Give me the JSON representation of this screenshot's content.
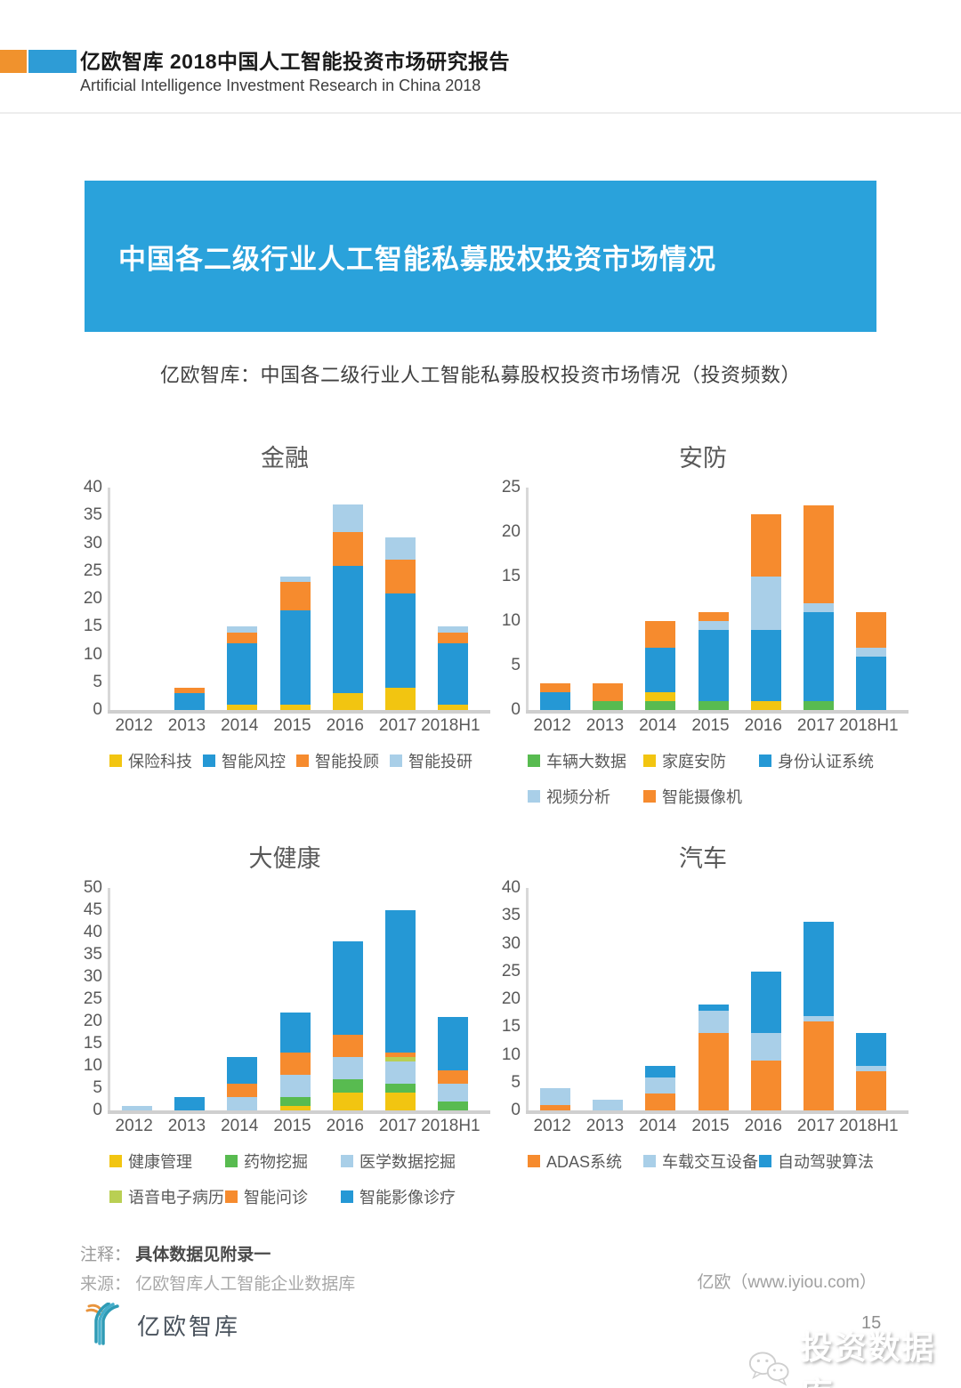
{
  "page": {
    "header": {
      "title": "亿欧智库 2018中国人工智能投资市场研究报告",
      "subtitle": "Artificial Intelligence Investment Research in China 2018"
    },
    "banner": {
      "title": "中国各二级行业人工智能私募股权投资市场情况"
    },
    "section_title": "亿欧智库：中国各二级行业人工智能私募股权投资市场情况（投资频数）",
    "notes": {
      "note_label": "注释：",
      "note_text": "具体数据见附录一",
      "source_label": "来源：",
      "source_text": "亿欧智库人工智能企业数据库"
    },
    "footer_site": "亿欧（www.iyiou.com）",
    "logo_text": "亿欧智库",
    "page_number": "15",
    "watermark_text": "投资数据库"
  },
  "palette": {
    "blue": "#2598D5",
    "orange": "#F68B2E",
    "yellow": "#F2C511",
    "light_blue": "#A9CFE8",
    "green": "#58BB50",
    "light_green": "#B9CF53"
  },
  "chart_data": [
    {
      "type": "bar",
      "stacked": true,
      "title": "金融",
      "categories": [
        "2012",
        "2013",
        "2014",
        "2015",
        "2016",
        "2017",
        "2018H1"
      ],
      "ylim": [
        0,
        40
      ],
      "yticks": [
        0,
        5,
        10,
        15,
        20,
        25,
        30,
        35,
        40
      ],
      "grid": false,
      "legend_position": "bottom",
      "series": [
        {
          "name": "保险科技",
          "color": "#F2C511",
          "values": [
            0,
            0,
            1,
            1,
            3,
            4,
            1
          ]
        },
        {
          "name": "智能风控",
          "color": "#2598D5",
          "values": [
            0,
            3,
            11,
            17,
            23,
            17,
            11
          ]
        },
        {
          "name": "智能投顾",
          "color": "#F68B2E",
          "values": [
            0,
            1,
            2,
            5,
            6,
            6,
            2
          ]
        },
        {
          "name": "智能投研",
          "color": "#A9CFE8",
          "values": [
            0,
            0,
            1,
            1,
            5,
            4,
            1
          ]
        }
      ],
      "legend_rows": [
        [
          "保险科技",
          "智能风控",
          "智能投顾",
          "智能投研"
        ]
      ]
    },
    {
      "type": "bar",
      "stacked": true,
      "title": "安防",
      "categories": [
        "2012",
        "2013",
        "2014",
        "2015",
        "2016",
        "2017",
        "2018H1"
      ],
      "ylim": [
        0,
        25
      ],
      "yticks": [
        0,
        5,
        10,
        15,
        20,
        25
      ],
      "grid": false,
      "legend_position": "bottom",
      "series": [
        {
          "name": "车辆大数据",
          "color": "#58BB50",
          "values": [
            0,
            1,
            1,
            1,
            0,
            1,
            0
          ]
        },
        {
          "name": "家庭安防",
          "color": "#F2C511",
          "values": [
            0,
            0,
            1,
            0,
            1,
            0,
            0
          ]
        },
        {
          "name": "身份认证系统",
          "color": "#2598D5",
          "values": [
            2,
            0,
            5,
            8,
            8,
            10,
            6
          ]
        },
        {
          "name": "视频分析",
          "color": "#A9CFE8",
          "values": [
            0,
            0,
            0,
            1,
            6,
            1,
            1
          ]
        },
        {
          "name": "智能摄像机",
          "color": "#F68B2E",
          "values": [
            1,
            2,
            3,
            1,
            7,
            11,
            4
          ]
        }
      ],
      "legend_rows": [
        [
          "车辆大数据",
          "家庭安防",
          "身份认证系统"
        ],
        [
          "视频分析",
          "智能摄像机"
        ]
      ]
    },
    {
      "type": "bar",
      "stacked": true,
      "title": "大健康",
      "categories": [
        "2012",
        "2013",
        "2014",
        "2015",
        "2016",
        "2017",
        "2018H1"
      ],
      "ylim": [
        0,
        50
      ],
      "yticks": [
        0,
        5,
        10,
        15,
        20,
        25,
        30,
        35,
        40,
        45,
        50
      ],
      "grid": false,
      "legend_position": "bottom",
      "series": [
        {
          "name": "健康管理",
          "color": "#F2C511",
          "values": [
            0,
            0,
            0,
            1,
            4,
            4,
            0
          ]
        },
        {
          "name": "药物挖掘",
          "color": "#58BB50",
          "values": [
            0,
            0,
            0,
            2,
            3,
            2,
            2
          ]
        },
        {
          "name": "医学数据挖掘",
          "color": "#A9CFE8",
          "values": [
            1,
            0,
            3,
            5,
            5,
            5,
            4
          ]
        },
        {
          "name": "语音电子病历",
          "color": "#B9CF53",
          "values": [
            0,
            0,
            0,
            0,
            0,
            1,
            0
          ]
        },
        {
          "name": "智能问诊",
          "color": "#F68B2E",
          "values": [
            0,
            0,
            3,
            5,
            5,
            1,
            3
          ]
        },
        {
          "name": "智能影像诊疗",
          "color": "#2598D5",
          "values": [
            0,
            3,
            6,
            9,
            21,
            32,
            12
          ]
        }
      ],
      "legend_rows": [
        [
          "健康管理",
          "药物挖掘",
          "医学数据挖掘"
        ],
        [
          "语音电子病历",
          "智能问诊",
          "智能影像诊疗"
        ]
      ]
    },
    {
      "type": "bar",
      "stacked": true,
      "title": "汽车",
      "categories": [
        "2012",
        "2013",
        "2014",
        "2015",
        "2016",
        "2017",
        "2018H1"
      ],
      "ylim": [
        0,
        40
      ],
      "yticks": [
        0,
        5,
        10,
        15,
        20,
        25,
        30,
        35,
        40
      ],
      "grid": false,
      "legend_position": "bottom",
      "series": [
        {
          "name": "ADAS系统",
          "color": "#F68B2E",
          "values": [
            1,
            0,
            3,
            14,
            9,
            16,
            7
          ]
        },
        {
          "name": "车载交互设备",
          "color": "#A9CFE8",
          "values": [
            3,
            2,
            3,
            4,
            5,
            1,
            1
          ]
        },
        {
          "name": "自动驾驶算法",
          "color": "#2598D5",
          "values": [
            0,
            0,
            2,
            1,
            11,
            17,
            6
          ]
        }
      ],
      "legend_rows": [
        [
          "ADAS系统",
          "车载交互设备",
          "自动驾驶算法"
        ]
      ]
    }
  ]
}
